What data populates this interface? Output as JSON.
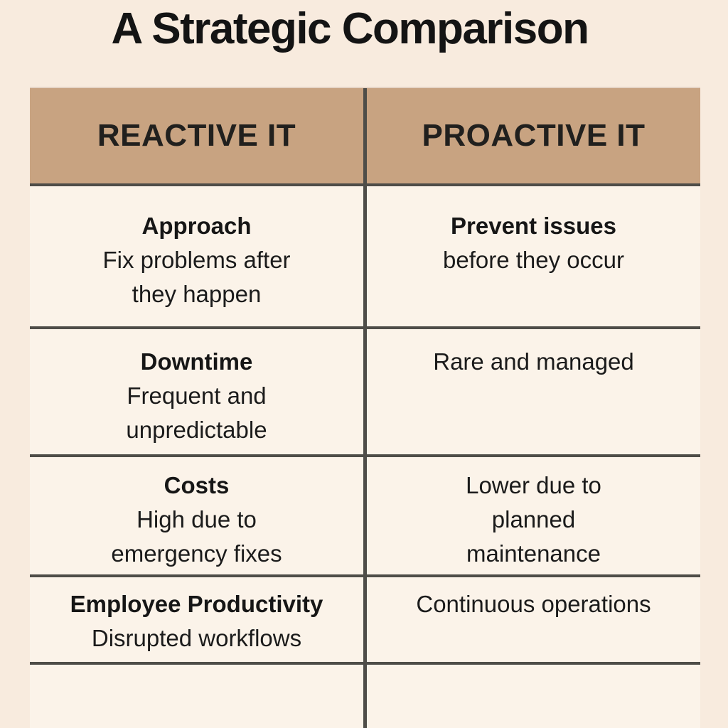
{
  "page": {
    "title": "A Strategic Comparison"
  },
  "colors": {
    "page_background": "#f8ebde",
    "cell_background": "#fbf3e9",
    "header_background": "#c8a381",
    "rule_color": "#4e4d48",
    "text_color": "#1b1b1b"
  },
  "table": {
    "headers": [
      {
        "label": "REACTIVE IT"
      },
      {
        "label": "PROACTIVE IT"
      }
    ],
    "rows": [
      {
        "left": {
          "term": "Approach",
          "body": "Fix problems after\nthey happen"
        },
        "right": {
          "term": "Prevent issues",
          "body": "before they occur"
        }
      },
      {
        "left": {
          "term": "Downtime",
          "body": "Frequent and\nunpredictable"
        },
        "right": {
          "term": "",
          "body": "Rare and managed"
        }
      },
      {
        "left": {
          "term": "Costs",
          "body": "High due to\nemergency fixes"
        },
        "right": {
          "term": "",
          "body": "Lower due to\nplanned\nmaintenance"
        }
      },
      {
        "left": {
          "term": "Employee Productivity",
          "body": "Disrupted workflows"
        },
        "right": {
          "term": "",
          "body": "Continuous operations"
        }
      },
      {
        "left": {
          "term": "",
          "body": ""
        },
        "right": {
          "term": "",
          "body": ""
        }
      }
    ]
  },
  "chart_data": {
    "type": "table",
    "title": "A Strategic Comparison",
    "columns": [
      "REACTIVE IT",
      "PROACTIVE IT"
    ],
    "rows": [
      {
        "aspect": "Approach",
        "reactive": "Fix problems after they happen",
        "proactive": "Prevent issues before they occur"
      },
      {
        "aspect": "Downtime",
        "reactive": "Frequent and unpredictable",
        "proactive": "Rare and managed"
      },
      {
        "aspect": "Costs",
        "reactive": "High due to emergency fixes",
        "proactive": "Lower due to planned maintenance"
      },
      {
        "aspect": "Employee Productivity",
        "reactive": "Disrupted workflows",
        "proactive": "Continuous operations"
      }
    ],
    "layout": {
      "header_fill": "#c8a381",
      "grid": "horizontal rules + center column rule",
      "bottom_row_clipped": true
    }
  }
}
